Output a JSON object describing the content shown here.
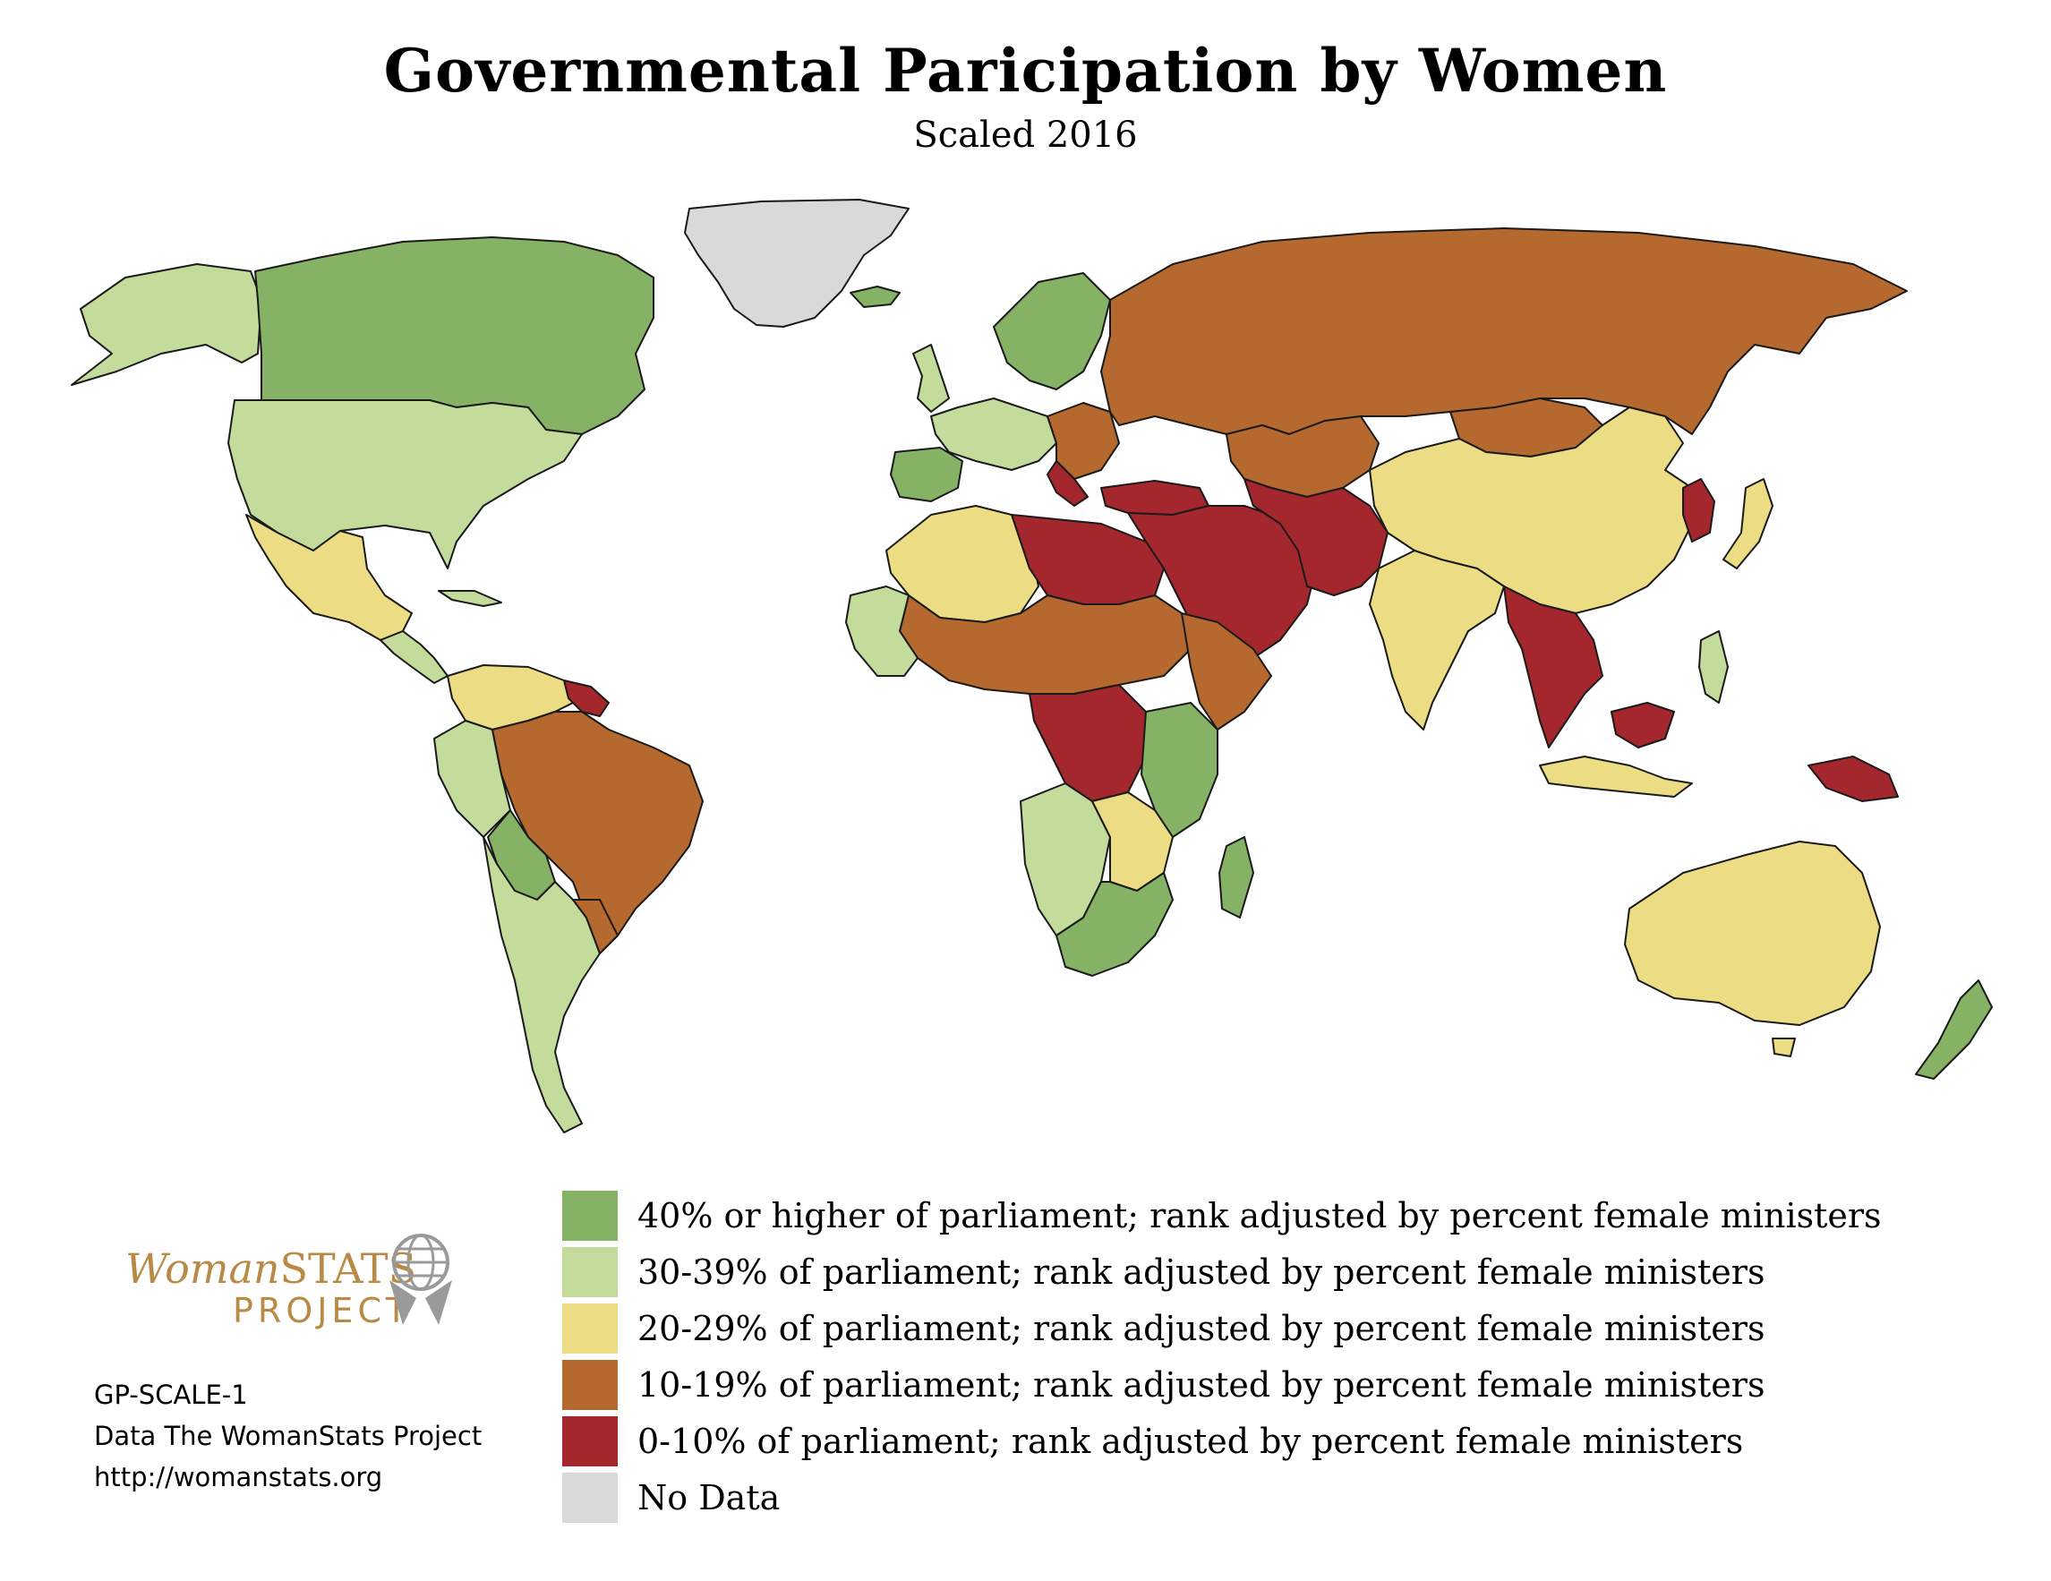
{
  "title": "Governmental Paricipation by Women",
  "subtitle": "Scaled 2016",
  "legend": [
    {
      "label": "40% or higher of parliament; rank adjusted by percent female ministers",
      "color": "#86b266"
    },
    {
      "label": "30-39% of parliament; rank adjusted by percent female ministers",
      "color": "#c3dc9c"
    },
    {
      "label": "20-29% of parliament; rank adjusted by percent female ministers",
      "color": "#ecdd84"
    },
    {
      "label": "10-19% of parliament; rank adjusted by percent female ministers",
      "color": "#b5692f"
    },
    {
      "label": "0-10% of parliament; rank adjusted by percent female ministers",
      "color": "#a3272c"
    },
    {
      "label": "No Data",
      "color": "#d9d9d9"
    }
  ],
  "logo": {
    "word1": "Woman",
    "word2": "STATS",
    "word3": "PROJECT"
  },
  "watermark": {
    "top": "WomanSTATS",
    "bottom": "PROJECT"
  },
  "credits": {
    "code": "GP-SCALE-1",
    "source": "Data The WomanStats Project",
    "url": "http://womanstats.org"
  }
}
